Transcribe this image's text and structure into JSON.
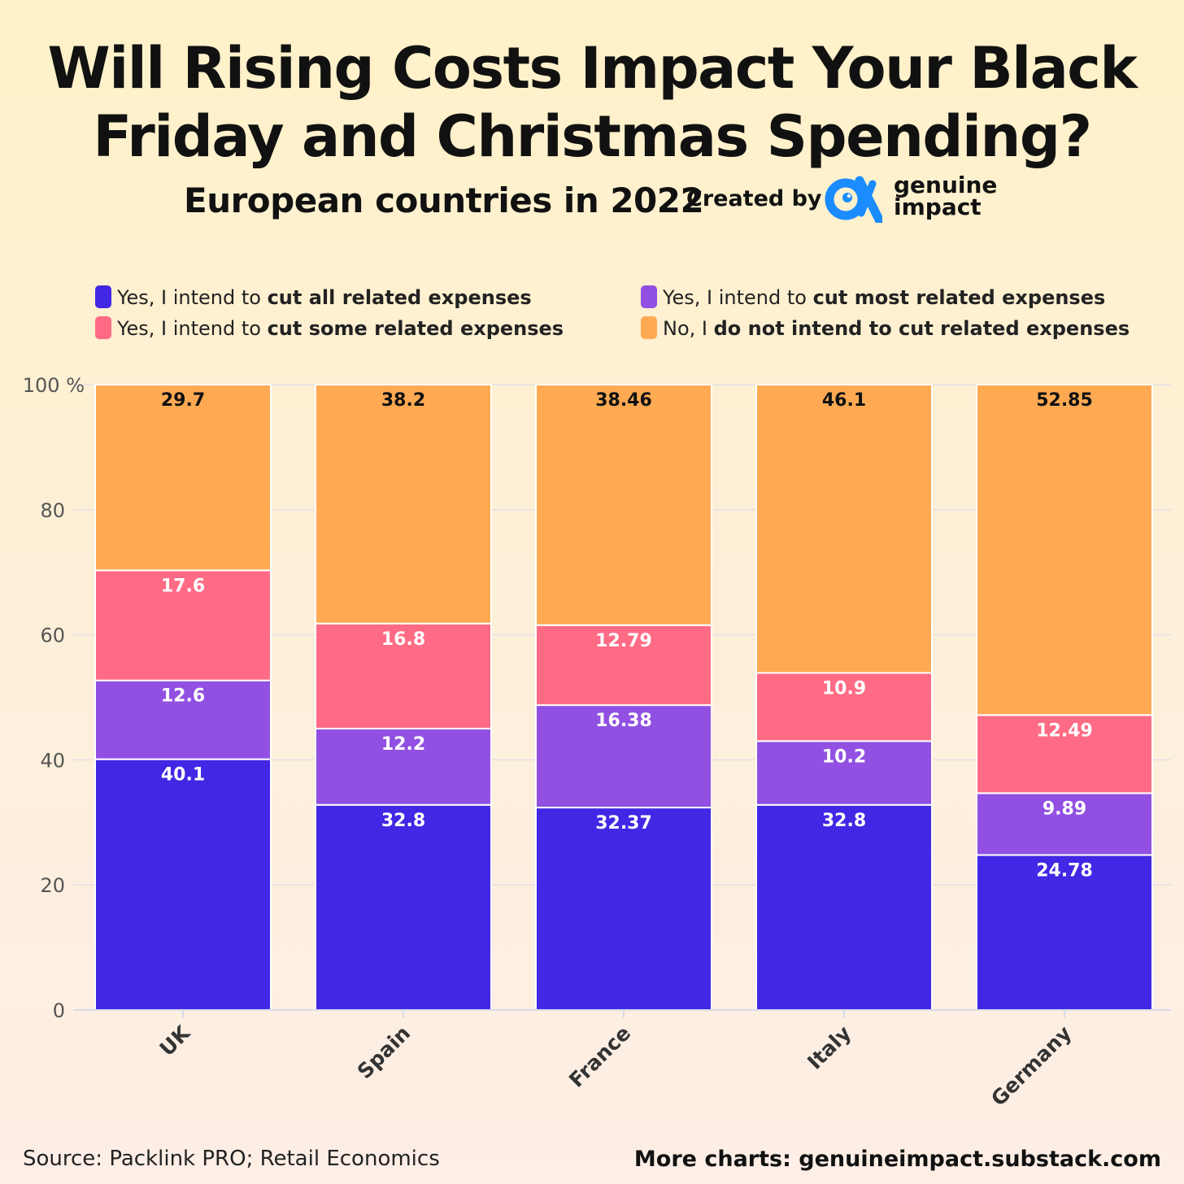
{
  "header": {
    "title_line1": "Will Rising Costs Impact Your Black",
    "title_line2": "Friday and Christmas Spending?",
    "subtitle": "European countries in 2022",
    "created_by": "Created by",
    "brand_line1": "genuine",
    "brand_line2": "impact"
  },
  "legend": [
    {
      "prefix": "Yes, I intend to ",
      "bold": "cut all related expenses",
      "color": "#4227e4"
    },
    {
      "prefix": "Yes, I intend to ",
      "bold": "cut most related expenses",
      "color": "#9150e2"
    },
    {
      "prefix": "Yes, I intend to ",
      "bold": "cut some related expenses",
      "color": "#ff6b85"
    },
    {
      "prefix": "No, I ",
      "bold": "do not intend to cut related expenses",
      "color": "#ffaa52"
    }
  ],
  "footer": {
    "source": "Source: Packlink PRO; Retail Economics",
    "more": "More charts: genuineimpact.substack.com"
  },
  "chart_data": {
    "type": "bar",
    "stacked": true,
    "categories": [
      "UK",
      "Spain",
      "France",
      "Italy",
      "Germany"
    ],
    "series": [
      {
        "name": "Yes, I intend to cut all related expenses",
        "values": [
          40.1,
          32.8,
          32.37,
          32.8,
          24.78
        ],
        "color": "#4227e4",
        "labels": [
          "40.1",
          "32.8",
          "32.37",
          "32.8",
          "24.78"
        ]
      },
      {
        "name": "Yes, I intend to cut most related expenses",
        "values": [
          12.6,
          12.2,
          16.38,
          10.2,
          9.89
        ],
        "color": "#9150e2",
        "labels": [
          "12.6",
          "12.2",
          "16.38",
          "10.2",
          "9.89"
        ]
      },
      {
        "name": "Yes, I intend to cut some related expenses",
        "values": [
          17.6,
          16.8,
          12.79,
          10.9,
          12.49
        ],
        "color": "#ff6b85",
        "labels": [
          "17.6",
          "16.8",
          "12.79",
          "10.9",
          "12.49"
        ]
      },
      {
        "name": "No, I do not intend to cut related expenses",
        "values": [
          29.7,
          38.2,
          38.46,
          46.1,
          52.85
        ],
        "color": "#ffaa52",
        "labels": [
          "29.7",
          "38.2",
          "38.46",
          "46.1",
          "52.85"
        ]
      }
    ],
    "ylim": [
      0,
      100
    ],
    "yticks": [
      "0",
      "20",
      "40",
      "60",
      "80",
      "100 %"
    ],
    "ytick_values": [
      0,
      20,
      40,
      60,
      80,
      100
    ],
    "grid": true,
    "legend_position": "top"
  }
}
